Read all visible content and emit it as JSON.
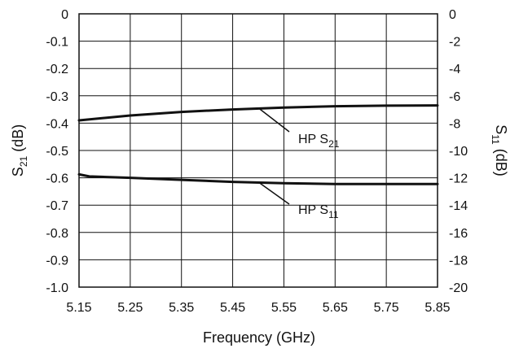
{
  "chart_data": {
    "type": "line",
    "xlabel": "Frequency (GHz)",
    "xlim": [
      5.15,
      5.85
    ],
    "xticks": [
      "5.15",
      "5.25",
      "5.35",
      "5.45",
      "5.55",
      "5.65",
      "5.75",
      "5.85"
    ],
    "y_left": {
      "label_main": "S",
      "label_sub": "21",
      "label_unit": " (dB)",
      "lim": [
        -1.0,
        0
      ],
      "ticks": [
        "0",
        "-0.1",
        "-0.2",
        "-0.3",
        "-0.4",
        "-0.5",
        "-0.6",
        "-0.7",
        "-0.8",
        "-0.9",
        "-1.0"
      ]
    },
    "y_right": {
      "label_main": "S",
      "label_sub": "11",
      "label_unit": " (dB)",
      "lim": [
        -20,
        0
      ],
      "ticks": [
        "0",
        "-2",
        "-4",
        "-6",
        "-8",
        "-10",
        "-12",
        "-14",
        "-16",
        "-18",
        "-20"
      ]
    },
    "grid": true,
    "series": [
      {
        "name": "HP S21",
        "label_main": "HP S",
        "label_sub": "21",
        "axis": "left",
        "x": [
          5.15,
          5.25,
          5.35,
          5.45,
          5.55,
          5.65,
          5.75,
          5.85
        ],
        "y": [
          -0.39,
          -0.372,
          -0.359,
          -0.35,
          -0.343,
          -0.338,
          -0.336,
          -0.335
        ]
      },
      {
        "name": "HP S11",
        "label_main": "HP S",
        "label_sub": "11",
        "axis": "right",
        "x": [
          5.15,
          5.17,
          5.25,
          5.35,
          5.45,
          5.55,
          5.65,
          5.75,
          5.85
        ],
        "y": [
          -11.75,
          -11.9,
          -12.0,
          -12.15,
          -12.3,
          -12.4,
          -12.45,
          -12.45,
          -12.45
        ]
      }
    ]
  }
}
